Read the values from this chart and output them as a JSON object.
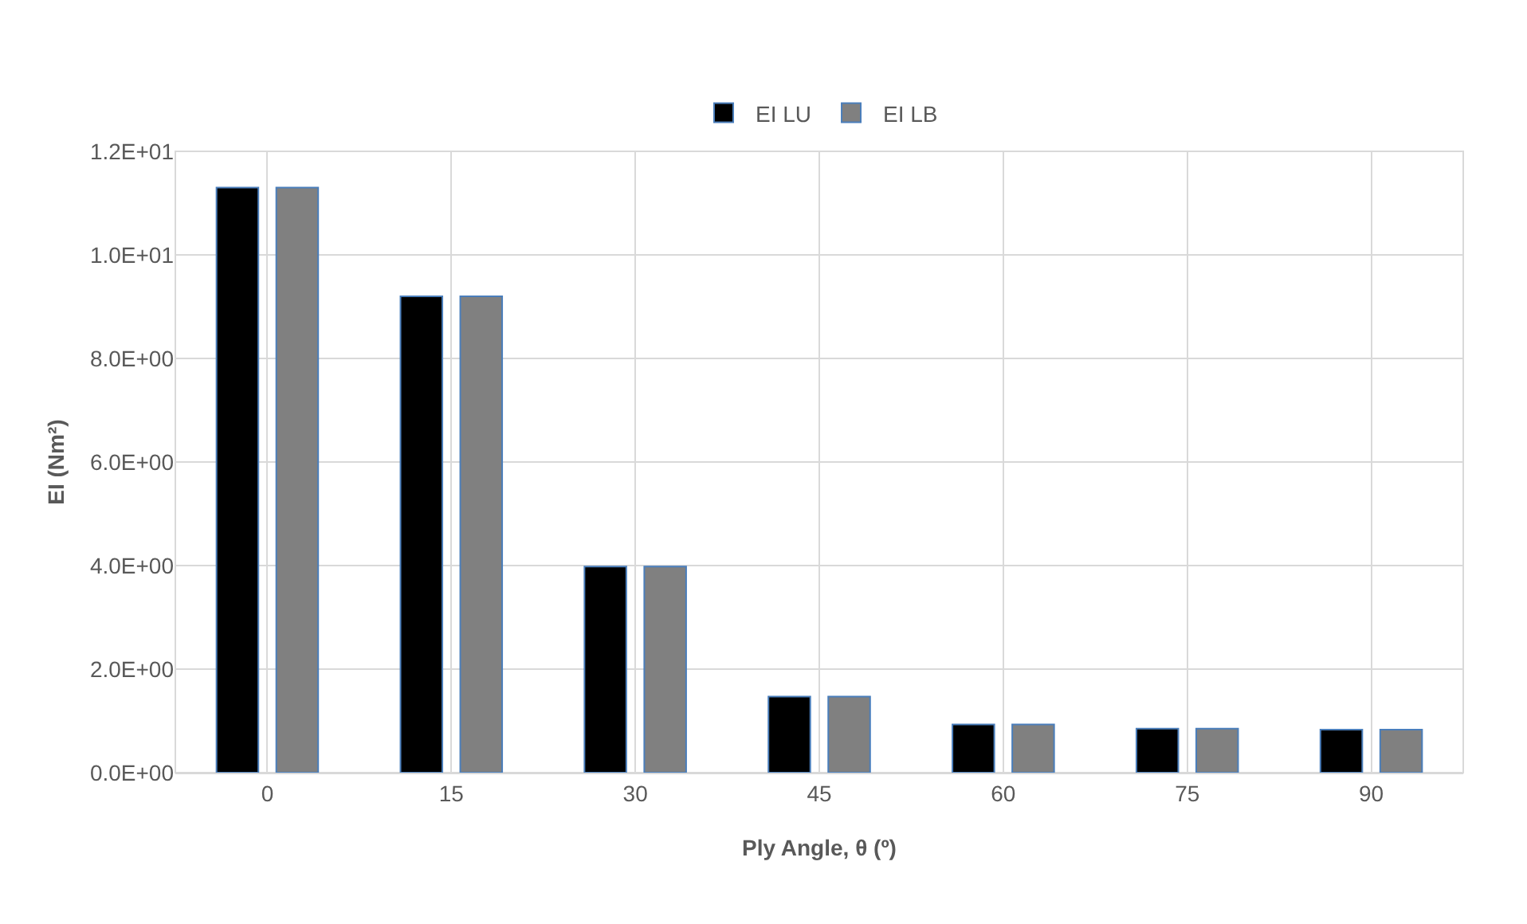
{
  "chart_data": {
    "type": "bar",
    "xlabel": "Ply Angle, θ (º)",
    "ylabel": "EI (Nm²)",
    "categories": [
      "0",
      "15",
      "30",
      "45",
      "60",
      "75",
      "90"
    ],
    "series": [
      {
        "name": "EI LU",
        "color": "#000000",
        "values": [
          11.3,
          9.2,
          3.98,
          1.47,
          0.93,
          0.85,
          0.83
        ]
      },
      {
        "name": "EI LB",
        "color": "#808080",
        "values": [
          11.3,
          9.2,
          3.98,
          1.47,
          0.93,
          0.85,
          0.83
        ]
      }
    ],
    "ylim": [
      0,
      12
    ],
    "yticks": [
      {
        "value": 0,
        "label": "0.0E+00"
      },
      {
        "value": 2,
        "label": "2.0E+00"
      },
      {
        "value": 4,
        "label": "4.0E+00"
      },
      {
        "value": 6,
        "label": "6.0E+00"
      },
      {
        "value": 8,
        "label": "8.0E+00"
      },
      {
        "value": 10,
        "label": "1.0E+01"
      },
      {
        "value": 12,
        "label": "1.2E+01"
      }
    ],
    "grid": true,
    "legend": "top"
  }
}
